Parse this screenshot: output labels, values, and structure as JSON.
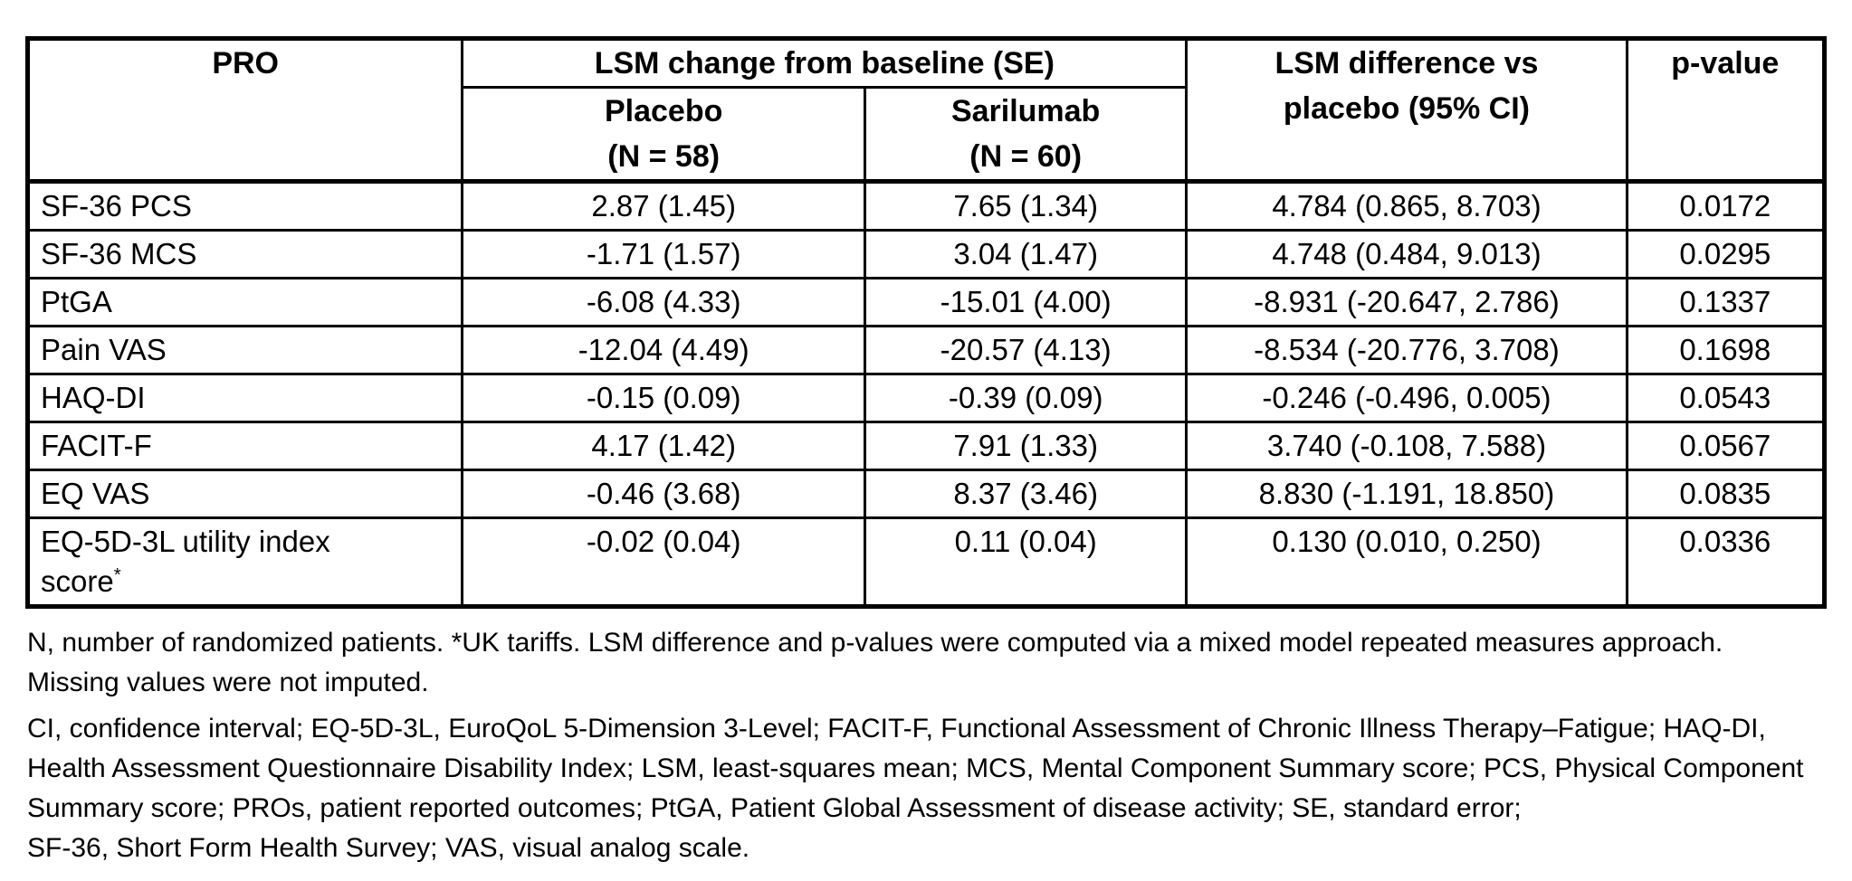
{
  "colors": {
    "text": "#000000",
    "background": "#ffffff",
    "border": "#000000"
  },
  "table": {
    "header": {
      "pro": "PRO",
      "group": "LSM change from baseline (SE)",
      "placebo": {
        "line1": "Placebo",
        "line2": "(N = 58)"
      },
      "sarilumab": {
        "line1": "Sarilumab",
        "line2": "(N = 60)"
      },
      "diff": {
        "line1": "LSM difference vs",
        "line2": "placebo (95% CI)"
      },
      "pvalue": "p-value"
    },
    "rows": [
      {
        "pro": "SF-36 PCS",
        "placebo": "2.87 (1.45)",
        "sarilumab": "7.65 (1.34)",
        "diff": "4.784 (0.865, 8.703)",
        "pvalue": "0.0172"
      },
      {
        "pro": "SF-36 MCS",
        "placebo": "-1.71 (1.57)",
        "sarilumab": "3.04 (1.47)",
        "diff": "4.748 (0.484, 9.013)",
        "pvalue": "0.0295"
      },
      {
        "pro": "PtGA",
        "placebo": "-6.08 (4.33)",
        "sarilumab": "-15.01 (4.00)",
        "diff": "-8.931 (-20.647, 2.786)",
        "pvalue": "0.1337"
      },
      {
        "pro": "Pain VAS",
        "placebo": "-12.04 (4.49)",
        "sarilumab": "-20.57 (4.13)",
        "diff": "-8.534 (-20.776, 3.708)",
        "pvalue": "0.1698"
      },
      {
        "pro": "HAQ-DI",
        "placebo": "-0.15 (0.09)",
        "sarilumab": "-0.39 (0.09)",
        "diff": "-0.246 (-0.496, 0.005)",
        "pvalue": "0.0543"
      },
      {
        "pro": "FACIT-F",
        "placebo": "4.17 (1.42)",
        "sarilumab": "7.91 (1.33)",
        "diff": "3.740 (-0.108, 7.588)",
        "pvalue": "0.0567"
      },
      {
        "pro": "EQ VAS",
        "placebo": "-0.46 (3.68)",
        "sarilumab": "8.37 (3.46)",
        "diff": "8.830 (-1.191, 18.850)",
        "pvalue": "0.0835"
      },
      {
        "pro": "EQ-5D-3L utility index",
        "pro_line2": "score",
        "pro_sup": "*",
        "placebo": "-0.02 (0.04)",
        "sarilumab": "0.11 (0.04)",
        "diff": "0.130 (0.010, 0.250)",
        "pvalue": "0.0336"
      }
    ]
  },
  "footnotes": {
    "lines": [
      "N, number of randomized patients. *UK tariffs. LSM difference and p-values were computed via a mixed model repeated measures approach.",
      "Missing values were not imputed.",
      "CI, confidence interval; EQ-5D-3L, EuroQoL 5-Dimension 3-Level; FACIT-F, Functional Assessment of Chronic Illness Therapy–Fatigue; HAQ-DI,",
      "Health Assessment Questionnaire Disability Index; LSM, least-squares mean; MCS, Mental Component Summary score; PCS, Physical Component",
      "Summary score; PROs, patient reported outcomes; PtGA, Patient Global Assessment of disease activity; SE, standard error;",
      "SF-36, Short Form Health Survey; VAS, visual analog scale."
    ]
  }
}
